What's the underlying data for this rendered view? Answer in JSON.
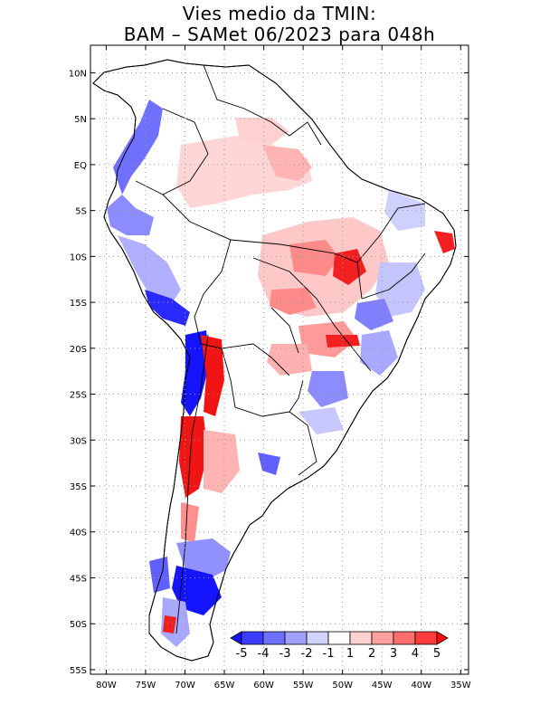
{
  "title": {
    "line1": "Vies medio da TMIN:",
    "line2": "BAM – SAMet 06/2023  para 048h"
  },
  "map": {
    "region": "South America",
    "lon_range": [
      -82,
      -34
    ],
    "lat_range": [
      -55.5,
      13
    ],
    "lat_ticks": [
      {
        "value": 10,
        "label": "10N"
      },
      {
        "value": 5,
        "label": "5N"
      },
      {
        "value": 0,
        "label": "EQ"
      },
      {
        "value": -5,
        "label": "5S"
      },
      {
        "value": -10,
        "label": "10S"
      },
      {
        "value": -15,
        "label": "15S"
      },
      {
        "value": -20,
        "label": "20S"
      },
      {
        "value": -25,
        "label": "25S"
      },
      {
        "value": -30,
        "label": "30S"
      },
      {
        "value": -35,
        "label": "35S"
      },
      {
        "value": -40,
        "label": "40S"
      },
      {
        "value": -45,
        "label": "45S"
      },
      {
        "value": -50,
        "label": "50S"
      },
      {
        "value": -55,
        "label": "55S"
      }
    ],
    "lon_ticks": [
      {
        "value": -80,
        "label": "80W"
      },
      {
        "value": -75,
        "label": "75W"
      },
      {
        "value": -70,
        "label": "70W"
      },
      {
        "value": -65,
        "label": "65W"
      },
      {
        "value": -60,
        "label": "60W"
      },
      {
        "value": -55,
        "label": "55W"
      },
      {
        "value": -50,
        "label": "50W"
      },
      {
        "value": -45,
        "label": "45W"
      },
      {
        "value": -40,
        "label": "40W"
      },
      {
        "value": -35,
        "label": "35W"
      }
    ]
  },
  "colorbar": {
    "labels": [
      "-5",
      "-4",
      "-3",
      "-2",
      "-1",
      "1",
      "2",
      "3",
      "4",
      "5"
    ],
    "colors": [
      "#1414ff",
      "#3c3cff",
      "#6e6eff",
      "#a0a0ff",
      "#d2d2ff",
      "#ffffff",
      "#ffd2d2",
      "#ffa0a0",
      "#ff6e6e",
      "#ff3c3c",
      "#ff0a0a"
    ]
  },
  "anomaly_colors": {
    "red_strong": "#f20f0f",
    "red_mid": "#ff7a7a",
    "red_light": "#ffc8c8",
    "blue_strong": "#1414ff",
    "blue_mid": "#6e6eff",
    "blue_light": "#c8c8ff"
  }
}
